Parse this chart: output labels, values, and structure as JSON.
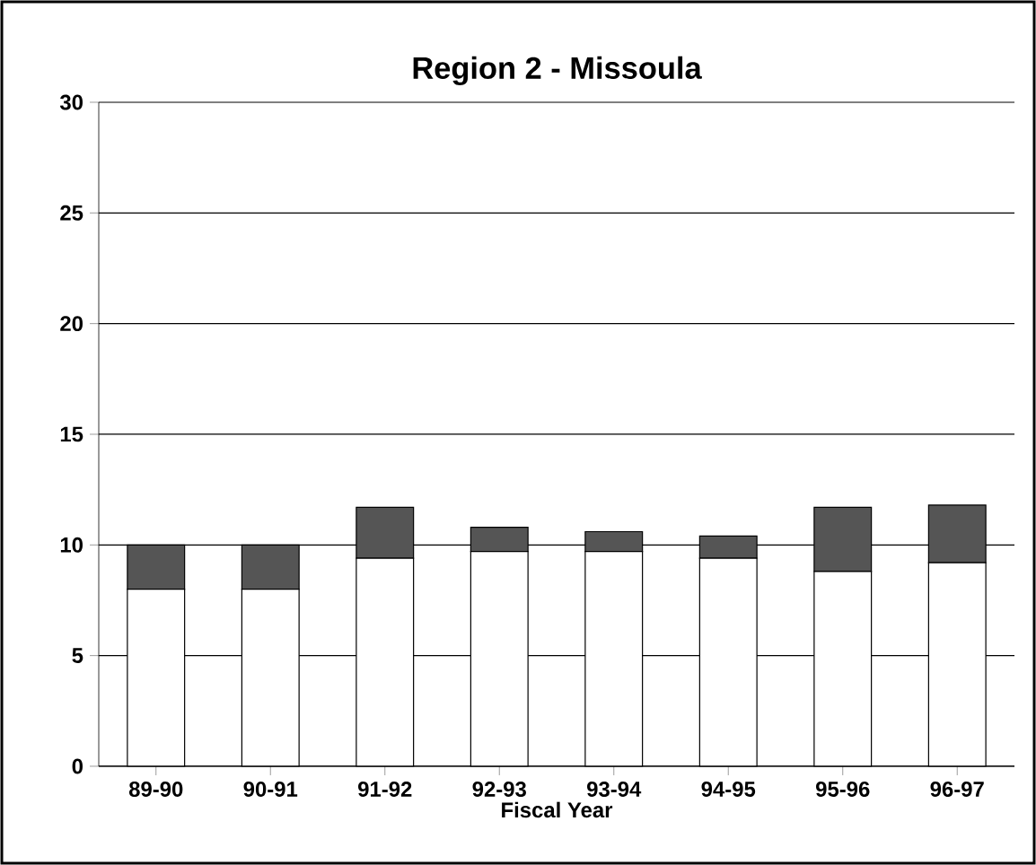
{
  "chart_data": {
    "type": "bar",
    "title": "Region 2 - Missoula",
    "xlabel": "Fiscal Year",
    "categories": [
      "89-90",
      "90-91",
      "91-92",
      "92-93",
      "93-94",
      "94-95",
      "95-96",
      "96-97"
    ],
    "stacked": true,
    "series": [
      {
        "color": "#ffffff",
        "values": [
          8,
          8,
          9.4,
          9.7,
          9.7,
          9.4,
          8.8,
          9.2
        ]
      },
      {
        "color": "#555555",
        "values": [
          2,
          2,
          2.3,
          1.1,
          0.9,
          1.0,
          2.9,
          2.6
        ]
      }
    ],
    "ylim": [
      0,
      30
    ],
    "yticks": [
      0,
      5,
      10,
      15,
      20,
      25,
      30
    ],
    "grid": "y"
  }
}
